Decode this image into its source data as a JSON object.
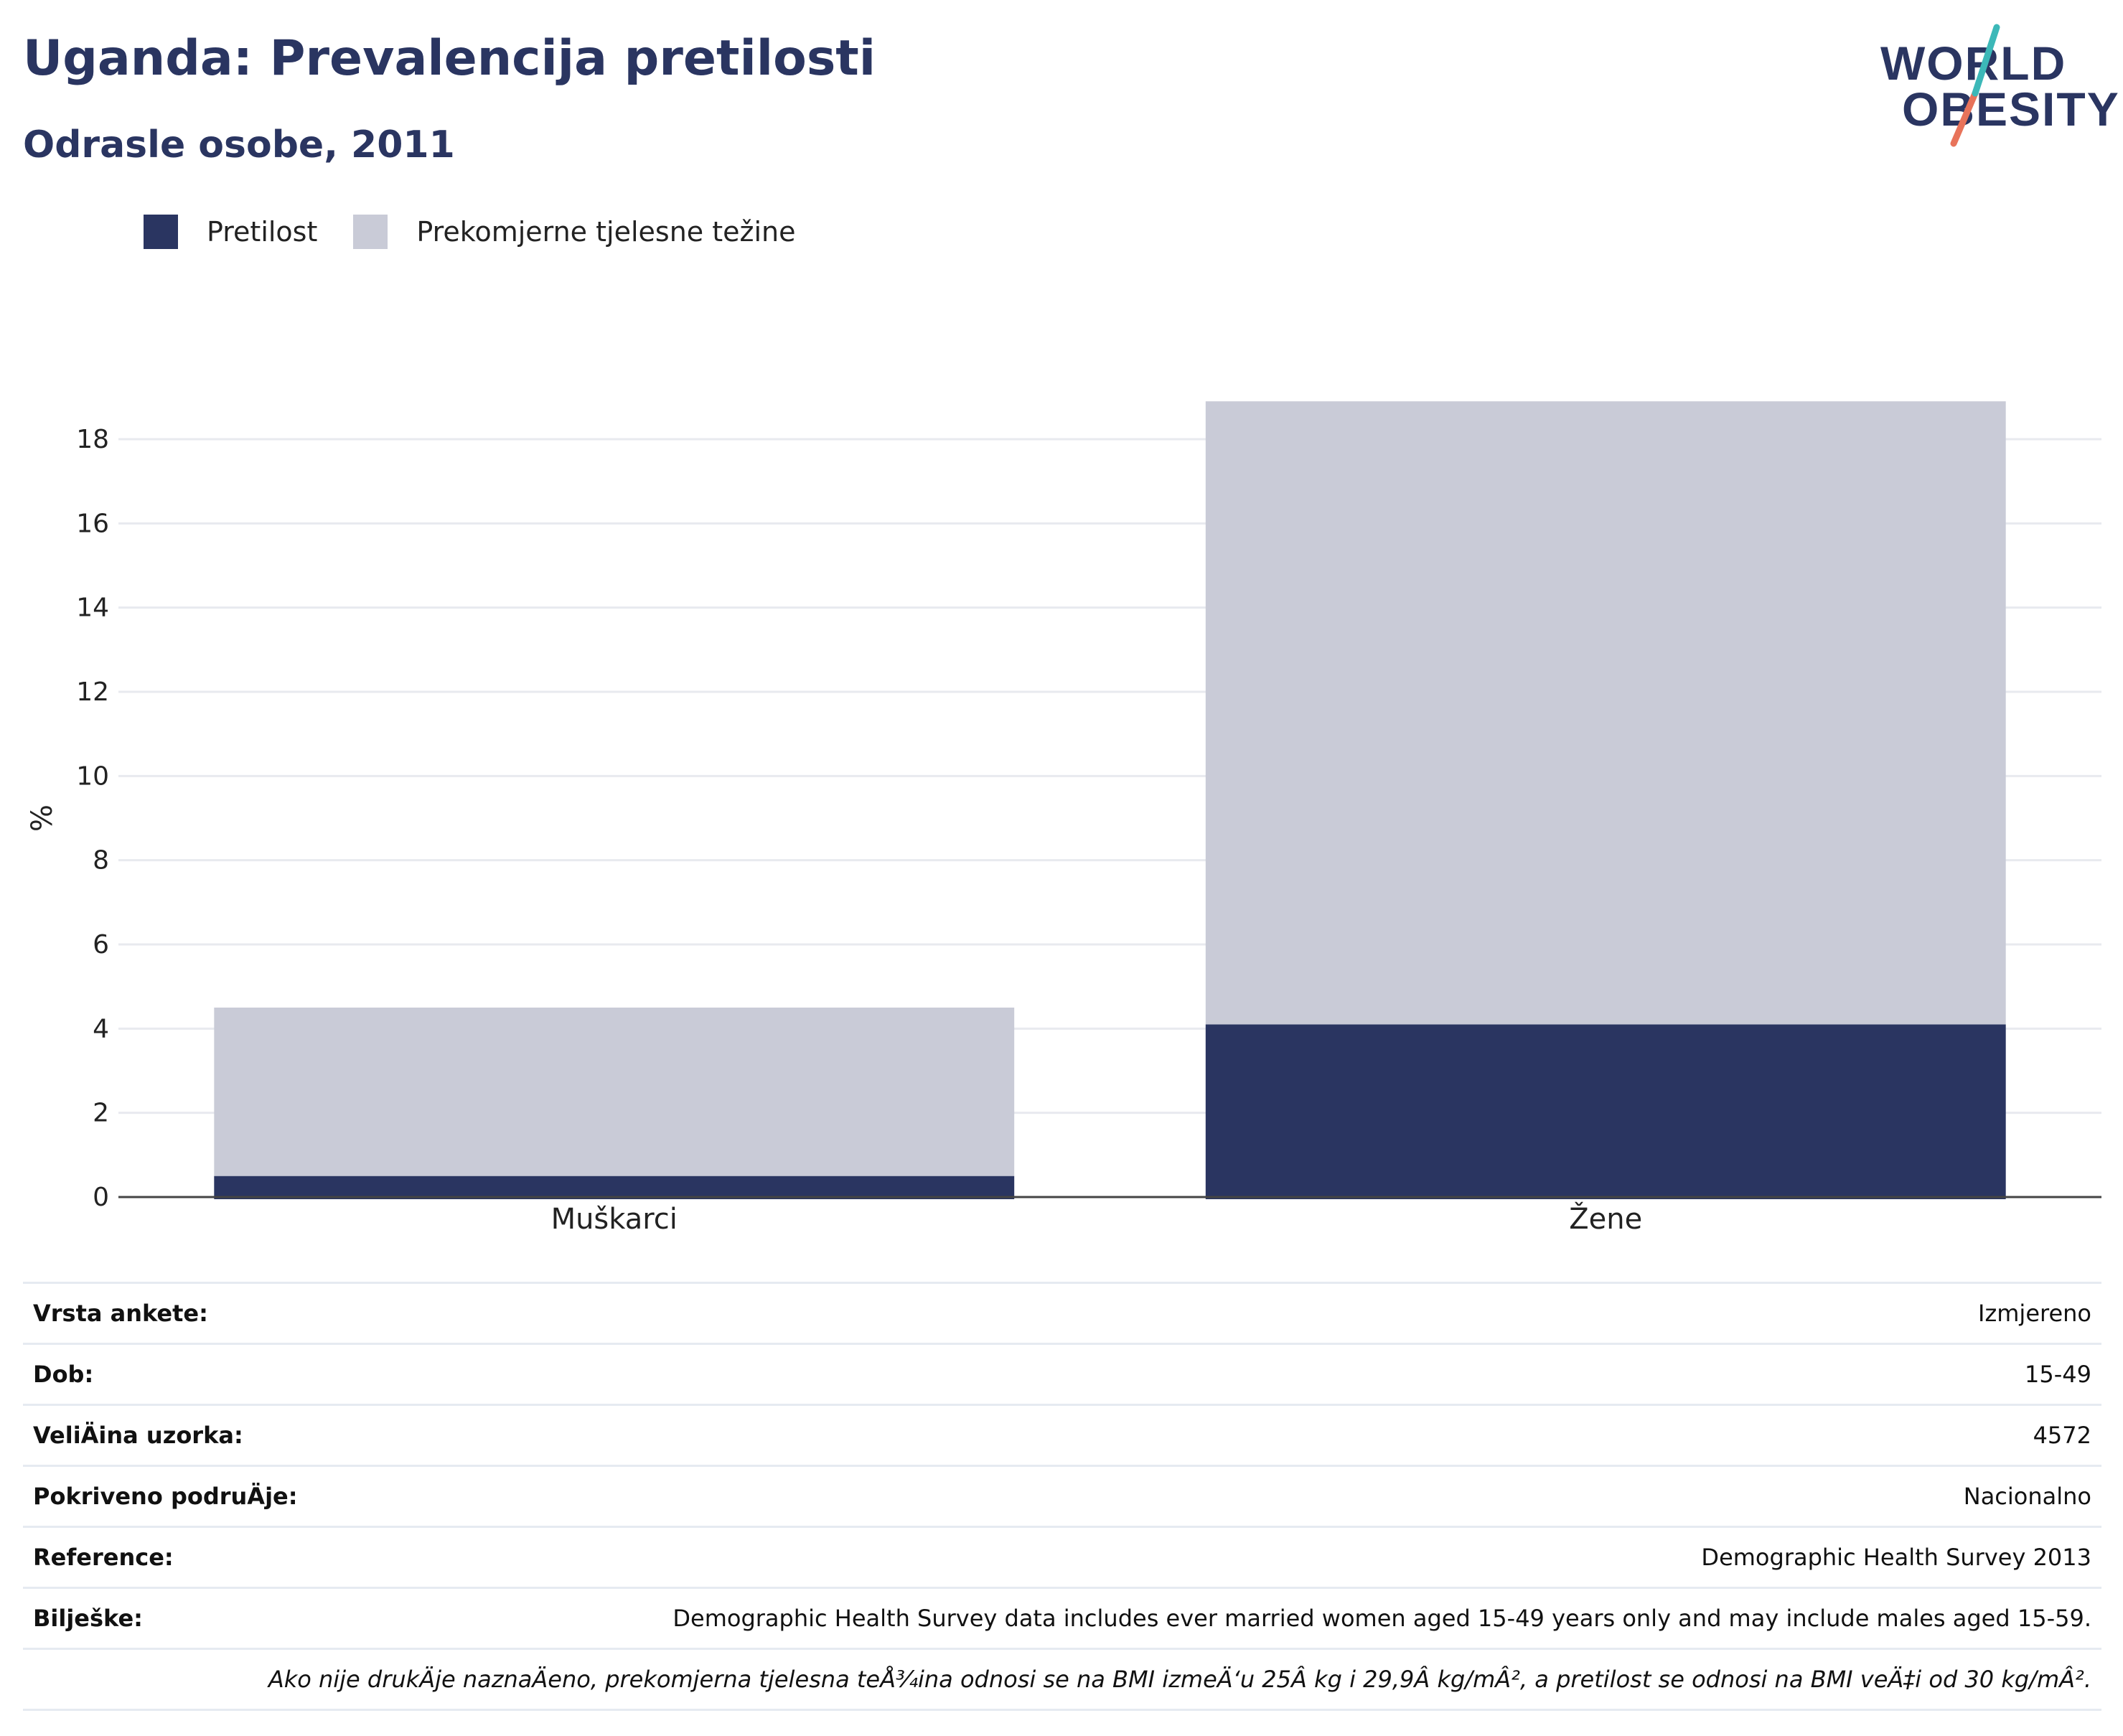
{
  "header": {
    "title": "Uganda: Prevalencija pretilosti",
    "subtitle": "Odrasle osobe, 2011"
  },
  "logo": {
    "line1": "WORLD",
    "line2": "OBESITY"
  },
  "chart_data": {
    "type": "bar",
    "stacked": true,
    "categories": [
      "Muškarci",
      "Žene"
    ],
    "series": [
      {
        "name": "Pretilost",
        "values": [
          0.5,
          4.1
        ],
        "color": "#2a3561"
      },
      {
        "name": "Prekomjerne tjelesne težine",
        "values": [
          4.0,
          14.8
        ],
        "color": "#c9cbd7"
      }
    ],
    "ylabel": "%",
    "ylim": [
      0,
      19
    ],
    "yticks": [
      0,
      2,
      4,
      6,
      8,
      10,
      12,
      14,
      16,
      18
    ],
    "grid": true,
    "legend": "top-left"
  },
  "meta": {
    "rows": [
      {
        "key": "Vrsta ankete:",
        "value": "Izmjereno"
      },
      {
        "key": "Dob:",
        "value": "15-49"
      },
      {
        "key": "VeliÄ\u001dina uzorka:",
        "value": "4572"
      },
      {
        "key": "Pokriveno podruÄ\u001dje:",
        "value": "Nacionalno"
      },
      {
        "key": "Reference:",
        "value": "Demographic Health Survey 2013"
      },
      {
        "key": "Bilješke:",
        "value": "Demographic Health Survey data includes ever married women aged 15-49 years only and may include males aged 15-59."
      }
    ],
    "footnote": "Ako nije drukÄ\u001dje naznaÄ\u001deno, prekomjerna tjelesna teÅ¾ina odnosi se na BMI izmeÄ‘u 25Â kg i 29,9Â kg/mÂ², a pretilost se odnosi na BMI veÄ‡i od 30 kg/mÂ²."
  }
}
